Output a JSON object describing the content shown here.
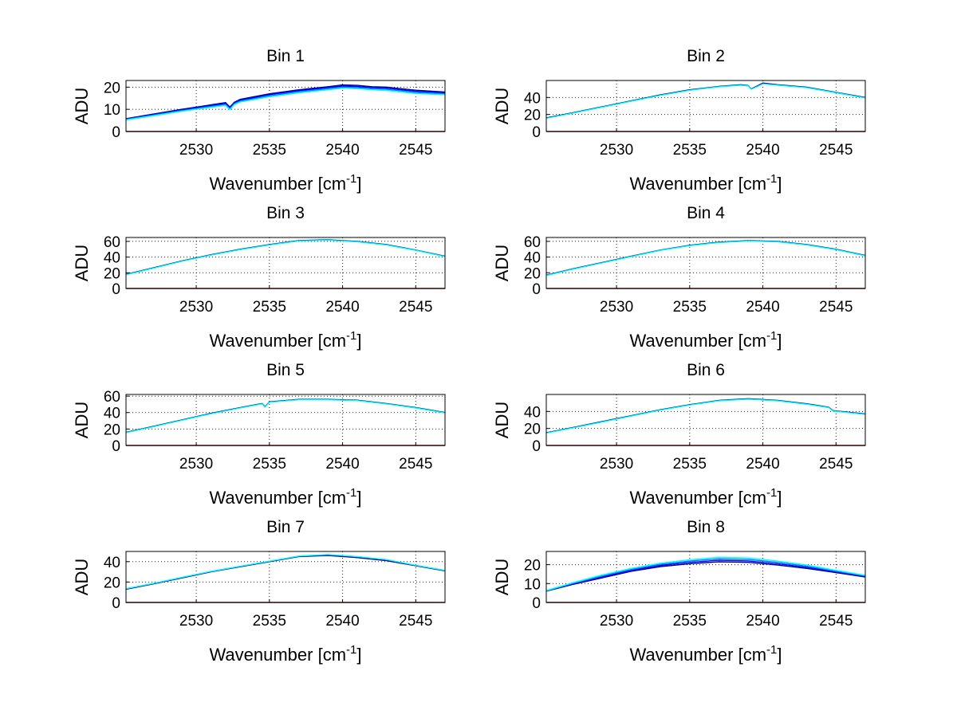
{
  "chart_data": [
    {
      "type": "line",
      "title": "Bin 1",
      "xlabel": "Wavenumber [cm",
      "xlabel_sup": "-1",
      "xlabel_end": "]",
      "ylabel": "ADU",
      "xlim": [
        2525.2,
        2547.0
      ],
      "ylim": [
        0,
        23
      ],
      "xticks": [
        2530,
        2535,
        2540,
        2545
      ],
      "yticks": [
        0,
        10,
        20
      ],
      "grid": true,
      "series": [
        {
          "color": "#00008f",
          "x": [
            2525.2,
            2527,
            2529,
            2531,
            2532,
            2532.3,
            2532.6,
            2533,
            2535,
            2537,
            2539,
            2540,
            2541,
            2542,
            2543,
            2545,
            2547
          ],
          "y": [
            5.8,
            7.8,
            10.0,
            12.0,
            13.0,
            11.0,
            13.2,
            14.5,
            17.0,
            18.8,
            20.2,
            21.0,
            20.8,
            20.2,
            20.0,
            18.6,
            17.8
          ]
        },
        {
          "color": "#0000ff",
          "x": [
            2525.2,
            2527,
            2529,
            2531,
            2532,
            2532.3,
            2532.6,
            2533,
            2535,
            2537,
            2539,
            2540,
            2541,
            2542,
            2543,
            2545,
            2547
          ],
          "y": [
            5.6,
            7.5,
            9.7,
            11.7,
            12.6,
            10.6,
            12.9,
            14.1,
            16.6,
            18.4,
            19.8,
            20.5,
            20.3,
            19.8,
            19.5,
            18.1,
            17.4
          ]
        },
        {
          "color": "#0080ff",
          "x": [
            2525.2,
            2527,
            2529,
            2531,
            2532,
            2532.3,
            2532.6,
            2533,
            2535,
            2537,
            2539,
            2540,
            2541,
            2542,
            2543,
            2545,
            2547
          ],
          "y": [
            5.4,
            7.3,
            9.4,
            11.3,
            12.2,
            10.2,
            12.5,
            13.7,
            16.1,
            17.9,
            19.3,
            20.0,
            19.8,
            19.3,
            19.0,
            17.6,
            17.0
          ]
        },
        {
          "color": "#00ffff",
          "x": [
            2525.2,
            2527,
            2529,
            2531,
            2532,
            2532.3,
            2532.6,
            2533,
            2535,
            2537,
            2539,
            2540,
            2541,
            2542,
            2543,
            2545,
            2547
          ],
          "y": [
            5.2,
            7.0,
            9.1,
            10.9,
            11.8,
            9.8,
            12.1,
            13.3,
            15.6,
            17.4,
            18.8,
            19.5,
            19.3,
            18.8,
            18.5,
            17.1,
            16.6
          ]
        },
        {
          "color": "#800000",
          "x": [
            2525.2,
            2547
          ],
          "y": [
            0,
            0
          ]
        }
      ]
    },
    {
      "type": "line",
      "title": "Bin 2",
      "xlabel": "Wavenumber [cm",
      "xlabel_sup": "-1",
      "xlabel_end": "]",
      "ylabel": "ADU",
      "xlim": [
        2525.2,
        2547.0
      ],
      "ylim": [
        0,
        60
      ],
      "xticks": [
        2530,
        2535,
        2540,
        2545
      ],
      "yticks": [
        0,
        20,
        40
      ],
      "grid": true,
      "series": [
        {
          "color": "#00008f",
          "x": [
            2525.2,
            2527,
            2529,
            2531,
            2533,
            2535,
            2537,
            2538.5,
            2539,
            2539.2,
            2540,
            2541,
            2543,
            2545,
            2547
          ],
          "y": [
            16,
            22,
            29,
            36,
            43,
            49,
            53,
            55,
            54,
            50,
            57,
            55,
            52,
            46,
            40
          ]
        },
        {
          "color": "#00ffff",
          "x": [
            2525.2,
            2527,
            2529,
            2531,
            2533,
            2535,
            2537,
            2538.5,
            2539,
            2539.2,
            2540,
            2541,
            2543,
            2545,
            2547
          ],
          "y": [
            15.5,
            21.5,
            28.5,
            35.5,
            42.5,
            48.5,
            52.5,
            54.5,
            53.5,
            49.5,
            56,
            54.5,
            51.5,
            45.5,
            39.5
          ]
        },
        {
          "color": "#800000",
          "x": [
            2525.2,
            2547
          ],
          "y": [
            0,
            0
          ]
        }
      ]
    },
    {
      "type": "line",
      "title": "Bin 3",
      "xlabel": "Wavenumber [cm",
      "xlabel_sup": "-1",
      "xlabel_end": "]",
      "ylabel": "ADU",
      "xlim": [
        2525.2,
        2547.0
      ],
      "ylim": [
        0,
        65
      ],
      "xticks": [
        2530,
        2535,
        2540,
        2545
      ],
      "yticks": [
        0,
        20,
        40,
        60
      ],
      "grid": true,
      "series": [
        {
          "color": "#00008f",
          "x": [
            2525.2,
            2527,
            2529,
            2531,
            2533,
            2535,
            2537,
            2539,
            2541,
            2543,
            2545,
            2547
          ],
          "y": [
            18,
            26,
            35,
            43,
            50,
            56,
            61,
            62,
            60,
            56,
            49,
            41
          ]
        },
        {
          "color": "#00ffff",
          "x": [
            2525.2,
            2527,
            2529,
            2531,
            2533,
            2535,
            2537,
            2539,
            2541,
            2543,
            2545,
            2547
          ],
          "y": [
            17.5,
            25.5,
            34.5,
            42.5,
            49.5,
            55.5,
            60.5,
            61.5,
            59.5,
            55.5,
            48.5,
            40.5
          ]
        },
        {
          "color": "#800000",
          "x": [
            2525.2,
            2547
          ],
          "y": [
            0,
            0
          ]
        }
      ]
    },
    {
      "type": "line",
      "title": "Bin 4",
      "xlabel": "Wavenumber [cm",
      "xlabel_sup": "-1",
      "xlabel_end": "]",
      "ylabel": "ADU",
      "xlim": [
        2525.2,
        2547.0
      ],
      "ylim": [
        0,
        65
      ],
      "xticks": [
        2530,
        2535,
        2540,
        2545
      ],
      "yticks": [
        0,
        20,
        40,
        60
      ],
      "grid": true,
      "series": [
        {
          "color": "#00008f",
          "x": [
            2525.2,
            2527,
            2529,
            2531,
            2533,
            2535,
            2537,
            2539,
            2541,
            2543,
            2545,
            2547
          ],
          "y": [
            17,
            25,
            33,
            41,
            49,
            55,
            59,
            61,
            60,
            56,
            50,
            42
          ]
        },
        {
          "color": "#00ffff",
          "x": [
            2525.2,
            2527,
            2529,
            2531,
            2533,
            2535,
            2537,
            2539,
            2541,
            2543,
            2545,
            2547
          ],
          "y": [
            16.5,
            24.5,
            32.5,
            40.5,
            48.5,
            54.5,
            58.5,
            60.5,
            59.5,
            55.5,
            49.5,
            41.5
          ]
        },
        {
          "color": "#800000",
          "x": [
            2525.2,
            2547
          ],
          "y": [
            0,
            0
          ]
        }
      ]
    },
    {
      "type": "line",
      "title": "Bin 5",
      "xlabel": "Wavenumber [cm",
      "xlabel_sup": "-1",
      "xlabel_end": "]",
      "ylabel": "ADU",
      "xlim": [
        2525.2,
        2547.0
      ],
      "ylim": [
        0,
        62
      ],
      "xticks": [
        2530,
        2535,
        2540,
        2545
      ],
      "yticks": [
        0,
        20,
        40,
        60
      ],
      "grid": true,
      "series": [
        {
          "color": "#00008f",
          "x": [
            2525.2,
            2527,
            2529,
            2531,
            2533,
            2534.5,
            2534.7,
            2535,
            2537,
            2539,
            2541,
            2543,
            2545,
            2547
          ],
          "y": [
            16,
            23,
            31,
            39,
            46,
            51,
            47,
            53,
            56,
            56,
            55,
            51,
            46,
            40
          ]
        },
        {
          "color": "#00ffff",
          "x": [
            2525.2,
            2527,
            2529,
            2531,
            2533,
            2534.5,
            2534.7,
            2535,
            2537,
            2539,
            2541,
            2543,
            2545,
            2547
          ],
          "y": [
            15.5,
            22.5,
            30.5,
            38.5,
            45.5,
            50.5,
            46.5,
            52.5,
            55.5,
            55.5,
            54.5,
            50.5,
            45.5,
            39.5
          ]
        },
        {
          "color": "#800000",
          "x": [
            2525.2,
            2547
          ],
          "y": [
            0,
            0
          ]
        }
      ]
    },
    {
      "type": "line",
      "title": "Bin 6",
      "xlabel": "Wavenumber [cm",
      "xlabel_sup": "-1",
      "xlabel_end": "]",
      "ylabel": "ADU",
      "xlim": [
        2525.2,
        2547.0
      ],
      "ylim": [
        0,
        60
      ],
      "xticks": [
        2530,
        2535,
        2540,
        2545
      ],
      "yticks": [
        0,
        20,
        40
      ],
      "grid": true,
      "series": [
        {
          "color": "#00008f",
          "x": [
            2525.2,
            2527,
            2529,
            2531,
            2533,
            2535,
            2537,
            2539,
            2541,
            2543,
            2544.5,
            2544.8,
            2547
          ],
          "y": [
            15,
            21,
            28,
            35,
            42,
            48,
            53,
            55,
            53,
            49,
            45,
            41,
            37
          ]
        },
        {
          "color": "#00ffff",
          "x": [
            2525.2,
            2527,
            2529,
            2531,
            2533,
            2535,
            2537,
            2539,
            2541,
            2543,
            2544.5,
            2544.8,
            2547
          ],
          "y": [
            14.5,
            20.5,
            27.5,
            34.5,
            41.5,
            47.5,
            52.5,
            54.5,
            52.5,
            48.5,
            44.5,
            40.5,
            36.5
          ]
        },
        {
          "color": "#800000",
          "x": [
            2525.2,
            2547
          ],
          "y": [
            0,
            0
          ]
        }
      ]
    },
    {
      "type": "line",
      "title": "Bin 7",
      "xlabel": "Wavenumber [cm",
      "xlabel_sup": "-1",
      "xlabel_end": "]",
      "ylabel": "ADU",
      "xlim": [
        2525.2,
        2547.0
      ],
      "ylim": [
        0,
        50
      ],
      "xticks": [
        2530,
        2535,
        2540,
        2545
      ],
      "yticks": [
        0,
        20,
        40
      ],
      "grid": true,
      "series": [
        {
          "color": "#00008f",
          "x": [
            2525.2,
            2527,
            2529,
            2531,
            2533,
            2535,
            2537,
            2539,
            2541,
            2543,
            2545,
            2547
          ],
          "y": [
            13,
            18,
            24,
            30,
            35,
            40,
            45,
            46,
            44,
            41,
            36,
            31
          ]
        },
        {
          "color": "#00ffff",
          "x": [
            2525.2,
            2527,
            2529,
            2531,
            2533,
            2535,
            2537,
            2539,
            2541,
            2543,
            2545,
            2547
          ],
          "y": [
            13.5,
            18.5,
            24.5,
            30.5,
            35.5,
            40.5,
            45.5,
            47,
            45,
            42,
            36.5,
            31.5
          ]
        },
        {
          "color": "#800000",
          "x": [
            2525.2,
            2547
          ],
          "y": [
            0,
            0
          ]
        }
      ]
    },
    {
      "type": "line",
      "title": "Bin 8",
      "xlabel": "Wavenumber [cm",
      "xlabel_sup": "-1",
      "xlabel_end": "]",
      "ylabel": "ADU",
      "xlim": [
        2525.2,
        2547.0
      ],
      "ylim": [
        0,
        27
      ],
      "xticks": [
        2530,
        2535,
        2540,
        2545
      ],
      "yticks": [
        0,
        10,
        20
      ],
      "grid": true,
      "series": [
        {
          "color": "#00008f",
          "x": [
            2525.2,
            2527,
            2529,
            2531,
            2533,
            2535,
            2537,
            2539,
            2541,
            2543,
            2545,
            2547
          ],
          "y": [
            6,
            9.5,
            13,
            16.5,
            19,
            20.5,
            21.5,
            21.2,
            19.8,
            18,
            15.8,
            13.5
          ]
        },
        {
          "color": "#0000ff",
          "x": [
            2525.2,
            2527,
            2529,
            2531,
            2533,
            2535,
            2537,
            2539,
            2541,
            2543,
            2545,
            2547
          ],
          "y": [
            6.1,
            9.8,
            13.5,
            17,
            19.6,
            21.2,
            22.3,
            22,
            20.5,
            18.6,
            16.2,
            13.8
          ]
        },
        {
          "color": "#0080ff",
          "x": [
            2525.2,
            2527,
            2529,
            2531,
            2533,
            2535,
            2537,
            2539,
            2541,
            2543,
            2545,
            2547
          ],
          "y": [
            6.2,
            10.1,
            14,
            17.5,
            20.2,
            21.9,
            23.1,
            22.8,
            21.2,
            19.2,
            16.6,
            14.1
          ]
        },
        {
          "color": "#00ffff",
          "x": [
            2525.2,
            2527,
            2529,
            2531,
            2533,
            2535,
            2537,
            2539,
            2541,
            2543,
            2545,
            2547
          ],
          "y": [
            6.3,
            10.4,
            14.5,
            18,
            20.8,
            22.6,
            23.9,
            23.6,
            21.9,
            19.8,
            17,
            14.4
          ]
        },
        {
          "color": "#800000",
          "x": [
            2525.2,
            2547
          ],
          "y": [
            0,
            0
          ]
        }
      ]
    }
  ]
}
